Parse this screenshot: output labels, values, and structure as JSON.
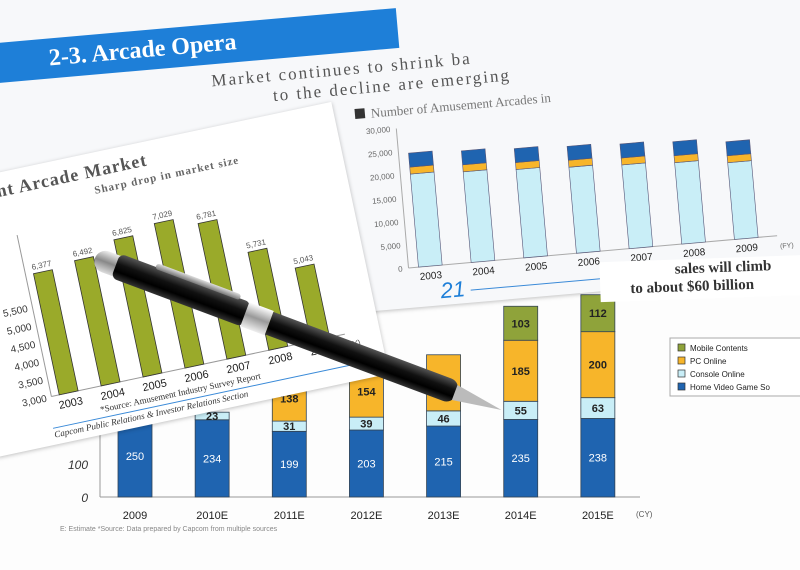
{
  "top_sheet": {
    "header": "2-3.  Arcade Opera",
    "subtitle_line1": "Market continues to shrink ba",
    "subtitle_line2": "to the decline are emerging",
    "chart_heading": "Number of Amusement Arcades in",
    "page_number": "21"
  },
  "right_sheet": {
    "line1": "sales will climb",
    "line2": "to about $60 billion"
  },
  "left_sheet": {
    "title": "ement Arcade Market",
    "chart_subtitle": "Sharp drop in market size",
    "source": "*Source: Amusement Industry Survey Report",
    "footer": "Capcom Public Relations & Investor Relations Section"
  },
  "bottom_sheet": {
    "source": "E: Estimate  *Source: Data prepared by Capcom from multiple sources"
  },
  "colors": {
    "olive": "#9aaa2a",
    "blue": "#1f64b0",
    "orange": "#f7b52a",
    "lightblue": "#c9eef7",
    "header_blue": "#1e7fd8"
  },
  "chart_data": [
    {
      "type": "bar",
      "title": "Sharp drop in market size",
      "categories": [
        "2003",
        "2004",
        "2005",
        "2006",
        "2007",
        "2008",
        "2009"
      ],
      "values": [
        6377,
        6492,
        6825,
        7029,
        6781,
        5731,
        5043
      ],
      "value_labels": [
        "6,377",
        "6,492",
        "6,825",
        "7,029",
        "6,781",
        "5,731",
        "5,043"
      ],
      "yticks": [
        "3,000",
        "3,500",
        "4,000",
        "4,500",
        "5,000",
        "5,500"
      ],
      "xlabel_unit": "(FY)",
      "ylim": [
        3000,
        7500
      ],
      "color": "#9aaa2a"
    },
    {
      "type": "bar",
      "stacked": true,
      "categories": [
        "2003",
        "2004",
        "2005",
        "2006",
        "2007",
        "2008",
        "2009"
      ],
      "series": [
        {
          "values": [
            20000,
            19500,
            19000,
            18500,
            18000,
            17500,
            16500
          ],
          "color": "#c9eef7"
        },
        {
          "values": [
            1500,
            1500,
            1500,
            1500,
            1500,
            1500,
            1500
          ],
          "color": "#f7b52a"
        },
        {
          "values": [
            3000,
            3000,
            3000,
            3000,
            3000,
            3000,
            3000
          ],
          "color": "#1f64b0"
        }
      ],
      "yticks": [
        "0",
        "5,000",
        "10,000",
        "15,000",
        "20,000",
        "25,000",
        "30,000"
      ],
      "xlabel_unit": "(FY)",
      "ylim": [
        0,
        30000
      ]
    },
    {
      "type": "bar",
      "stacked": true,
      "categories": [
        "2009",
        "2010E",
        "2011E",
        "2012E",
        "2013E",
        "2014E",
        "2015E"
      ],
      "series": [
        {
          "name": "Home Video Game Software",
          "values": [
            250,
            234,
            199,
            203,
            215,
            235,
            238
          ],
          "color": "#1f64b0"
        },
        {
          "name": "Console Online",
          "values": [
            null,
            23,
            31,
            39,
            46,
            55,
            63
          ],
          "color": "#c9eef7"
        },
        {
          "name": "PC Online",
          "values": [
            null,
            null,
            138,
            154,
            170,
            185,
            200
          ],
          "color": "#f7b52a"
        },
        {
          "name": "Mobile Contents",
          "values": [
            null,
            null,
            null,
            null,
            null,
            103,
            112
          ],
          "color": "#8fa33a"
        }
      ],
      "legend": [
        "Mobile Contents",
        "PC Online",
        "Console Online",
        "Home Video Game So"
      ],
      "legend_placement": "right",
      "yticks": [
        "0",
        "100"
      ],
      "xlabel_unit": "(CY)",
      "ylim": [
        0,
        700
      ]
    }
  ]
}
